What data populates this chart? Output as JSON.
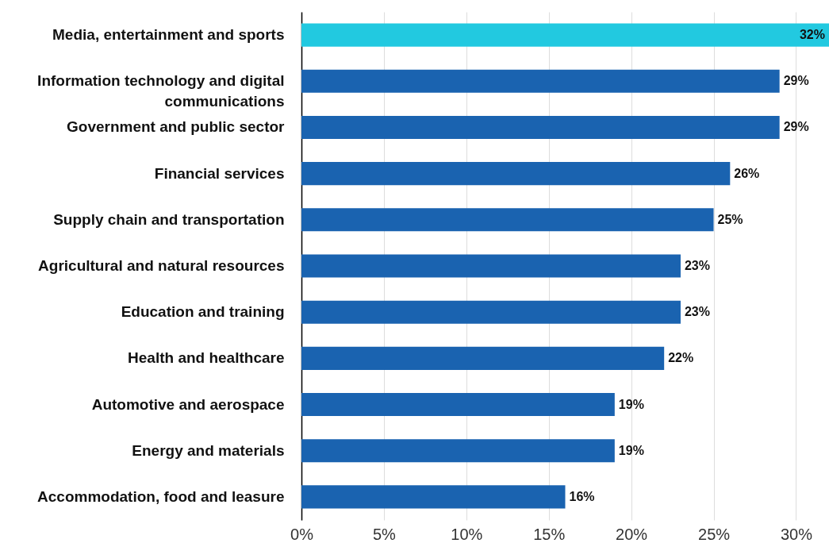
{
  "chart_data": {
    "type": "bar",
    "orientation": "horizontal",
    "categories": [
      "Media, entertainment and sports",
      "Information technology and digital communications",
      "Government and public sector",
      "Financial services",
      "Supply chain and transportation",
      "Agricultural and natural resources",
      "Education and training",
      "Health and healthcare",
      "Automotive and aerospace",
      "Energy and materials",
      "Accommodation, food and leasure"
    ],
    "values": [
      32,
      29,
      29,
      26,
      25,
      23,
      23,
      22,
      19,
      19,
      16
    ],
    "colors": [
      "#22c9e0",
      "#1a63b0",
      "#1a63b0",
      "#1a63b0",
      "#1a63b0",
      "#1a63b0",
      "#1a63b0",
      "#1a63b0",
      "#1a63b0",
      "#1a63b0",
      "#1a63b0"
    ],
    "value_labels": [
      "32%",
      "29%",
      "29%",
      "26%",
      "25%",
      "23%",
      "23%",
      "22%",
      "19%",
      "19%",
      "16%"
    ],
    "xlim": [
      0,
      32
    ],
    "xticks": [
      {
        "value": 0,
        "label": "0%"
      },
      {
        "value": 5,
        "label": "5%"
      },
      {
        "value": 10,
        "label": "10%"
      },
      {
        "value": 15,
        "label": "15%"
      },
      {
        "value": 20,
        "label": "20%"
      },
      {
        "value": 25,
        "label": "25%"
      },
      {
        "value": 30,
        "label": "30%"
      }
    ],
    "grid": "x"
  }
}
